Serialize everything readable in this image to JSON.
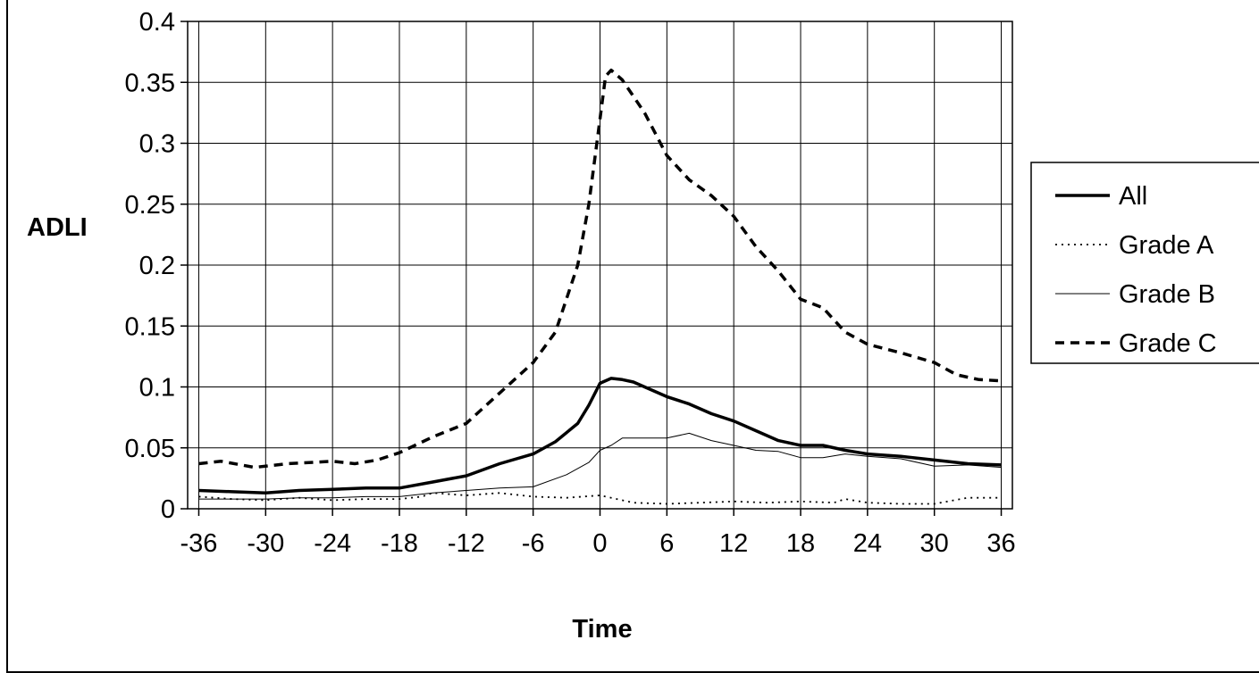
{
  "chart_data": {
    "type": "line",
    "title": "",
    "xlabel": "Time",
    "ylabel": "ADLI",
    "xlim": [
      -37,
      37
    ],
    "ylim": [
      0,
      0.4
    ],
    "xticks": [
      -36,
      -30,
      -24,
      -18,
      -12,
      -6,
      0,
      6,
      12,
      18,
      24,
      30,
      36
    ],
    "xtick_labels": [
      "-36",
      "-30",
      "-24",
      "-18",
      "-12",
      "-6",
      "0",
      "6",
      "12",
      "18",
      "24",
      "30",
      "36"
    ],
    "yticks": [
      0,
      0.05,
      0.1,
      0.15,
      0.2,
      0.25,
      0.3,
      0.35,
      0.4
    ],
    "ytick_labels": [
      "0",
      "0.05",
      "0.1",
      "0.15",
      "0.2",
      "0.25",
      "0.3",
      "0.35",
      "0.4"
    ],
    "grid": true,
    "legend_position": "right",
    "series": [
      {
        "name": "All",
        "style": "solid-thick",
        "color": "#000000",
        "x": [
          -36,
          -33,
          -30,
          -27,
          -24,
          -21,
          -18,
          -15,
          -12,
          -9,
          -6,
          -4,
          -2,
          -1,
          0,
          1,
          2,
          3,
          4,
          6,
          8,
          10,
          12,
          14,
          16,
          18,
          20,
          22,
          24,
          27,
          30,
          33,
          36
        ],
        "y": [
          0.015,
          0.014,
          0.013,
          0.015,
          0.016,
          0.017,
          0.017,
          0.022,
          0.027,
          0.037,
          0.045,
          0.055,
          0.07,
          0.085,
          0.103,
          0.107,
          0.106,
          0.104,
          0.1,
          0.092,
          0.086,
          0.078,
          0.072,
          0.064,
          0.056,
          0.052,
          0.052,
          0.048,
          0.045,
          0.043,
          0.04,
          0.037,
          0.036
        ]
      },
      {
        "name": "Grade A",
        "style": "dotted",
        "color": "#000000",
        "x": [
          -36,
          -33,
          -30,
          -27,
          -24,
          -21,
          -18,
          -16,
          -15,
          -12,
          -9,
          -6,
          -3,
          0,
          3,
          6,
          9,
          12,
          15,
          18,
          21,
          22,
          24,
          27,
          30,
          33,
          36
        ],
        "y": [
          0.01,
          0.008,
          0.007,
          0.009,
          0.007,
          0.008,
          0.008,
          0.01,
          0.013,
          0.011,
          0.013,
          0.01,
          0.009,
          0.011,
          0.005,
          0.004,
          0.005,
          0.006,
          0.005,
          0.006,
          0.005,
          0.008,
          0.005,
          0.004,
          0.004,
          0.009,
          0.009
        ]
      },
      {
        "name": "Grade B",
        "style": "solid-thin",
        "color": "#000000",
        "x": [
          -36,
          -33,
          -30,
          -27,
          -24,
          -21,
          -18,
          -15,
          -12,
          -9,
          -6,
          -3,
          -1,
          0,
          1,
          2,
          4,
          6,
          8,
          10,
          12,
          14,
          16,
          18,
          20,
          22,
          24,
          27,
          30,
          33,
          36
        ],
        "y": [
          0.008,
          0.008,
          0.008,
          0.009,
          0.009,
          0.01,
          0.01,
          0.013,
          0.015,
          0.017,
          0.018,
          0.028,
          0.038,
          0.048,
          0.052,
          0.058,
          0.058,
          0.058,
          0.062,
          0.056,
          0.052,
          0.048,
          0.047,
          0.042,
          0.042,
          0.045,
          0.043,
          0.041,
          0.035,
          0.036,
          0.034
        ]
      },
      {
        "name": "Grade C",
        "style": "dashed-thick",
        "color": "#000000",
        "x": [
          -36,
          -34,
          -31,
          -28,
          -24,
          -22,
          -20,
          -18,
          -15,
          -12,
          -9,
          -6,
          -4,
          -2,
          -1,
          0,
          0.5,
          1,
          2,
          4,
          6,
          8,
          10,
          12,
          14,
          16,
          18,
          20,
          22,
          24,
          27,
          30,
          32,
          34,
          36
        ],
        "y": [
          0.037,
          0.039,
          0.034,
          0.037,
          0.039,
          0.037,
          0.04,
          0.046,
          0.059,
          0.07,
          0.095,
          0.12,
          0.145,
          0.2,
          0.25,
          0.32,
          0.355,
          0.36,
          0.352,
          0.325,
          0.29,
          0.27,
          0.257,
          0.24,
          0.215,
          0.195,
          0.172,
          0.165,
          0.145,
          0.135,
          0.128,
          0.12,
          0.11,
          0.106,
          0.105
        ]
      }
    ]
  }
}
